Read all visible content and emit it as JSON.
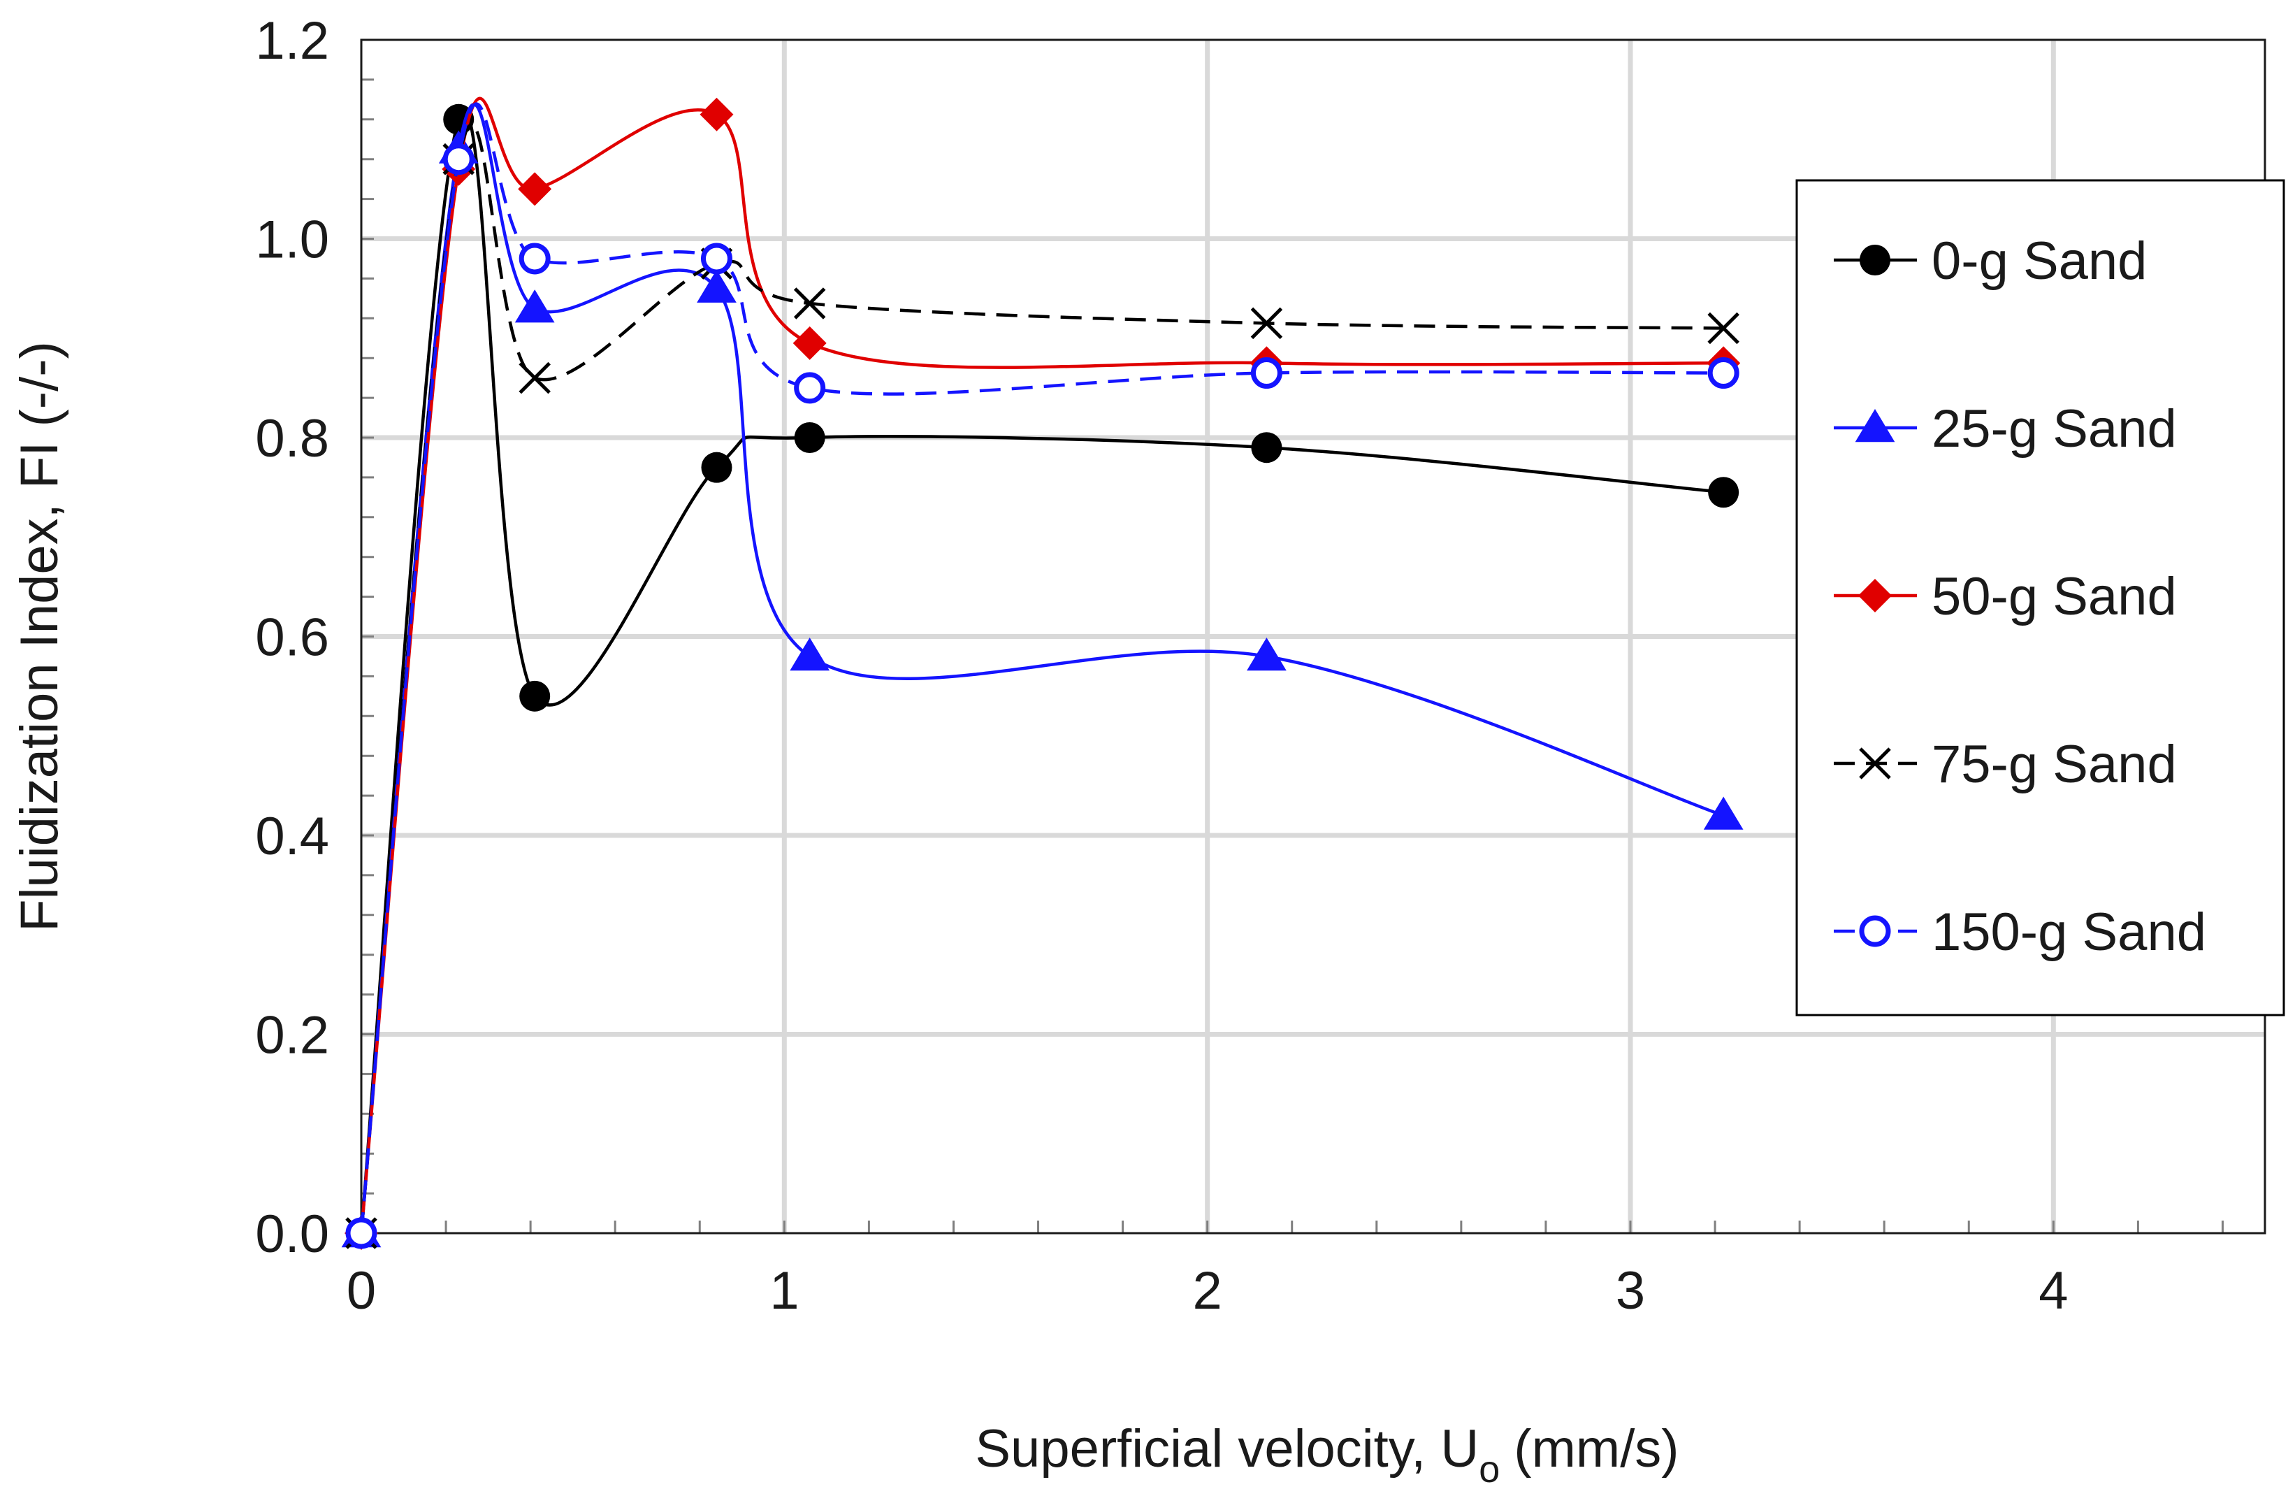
{
  "chart_data": {
    "type": "line",
    "title": "",
    "xlabel": "Superficial velocity, U",
    "xlabel_subscript": "o",
    "xlabel_unit": "(mm/s)",
    "ylabel": "Fluidization Index, FI (-/-)",
    "xlim": [
      0,
      4.5
    ],
    "ylim": [
      0,
      1.2
    ],
    "x_ticks": [
      0,
      1,
      2,
      3,
      4
    ],
    "y_ticks": [
      0.0,
      0.2,
      0.4,
      0.6,
      0.8,
      1.0,
      1.2
    ],
    "x_tick_labels": [
      "0",
      "1",
      "2",
      "3",
      "4"
    ],
    "y_tick_labels": [
      "0.0",
      "0.2",
      "0.4",
      "0.6",
      "0.8",
      "1.0",
      "1.2"
    ],
    "grid": true,
    "legend_position": "right",
    "series": [
      {
        "name": "0-g Sand",
        "color": "#000000",
        "marker": "circle-filled",
        "dash": "solid",
        "x": [
          0,
          0.23,
          0.41,
          0.84,
          1.06,
          2.14,
          3.22
        ],
        "y": [
          0.0,
          1.12,
          0.54,
          0.77,
          0.8,
          0.79,
          0.745
        ]
      },
      {
        "name": "25-g Sand",
        "color": "#1414ff",
        "marker": "triangle-filled",
        "dash": "solid",
        "x": [
          0,
          0.23,
          0.41,
          0.84,
          1.06,
          2.14,
          3.22
        ],
        "y": [
          0.0,
          1.09,
          0.93,
          0.95,
          0.58,
          0.58,
          0.42
        ]
      },
      {
        "name": "50-g Sand",
        "color": "#e00000",
        "marker": "diamond-filled",
        "dash": "solid",
        "x": [
          0,
          0.23,
          0.41,
          0.84,
          1.06,
          2.14,
          3.22
        ],
        "y": [
          0.0,
          1.07,
          1.05,
          1.125,
          0.895,
          0.875,
          0.875
        ]
      },
      {
        "name": "75-g Sand",
        "color": "#000000",
        "marker": "x",
        "dash": "dashed",
        "x": [
          0,
          0.23,
          0.41,
          0.84,
          1.06,
          2.14,
          3.22
        ],
        "y": [
          0.0,
          1.08,
          0.86,
          0.975,
          0.935,
          0.915,
          0.91
        ]
      },
      {
        "name": "150-g Sand",
        "color": "#1414ff",
        "marker": "circle-open",
        "dash": "dashed",
        "x": [
          0,
          0.23,
          0.41,
          0.84,
          1.06,
          2.14,
          3.22
        ],
        "y": [
          0.0,
          1.08,
          0.98,
          0.98,
          0.85,
          0.865,
          0.865
        ]
      }
    ]
  }
}
